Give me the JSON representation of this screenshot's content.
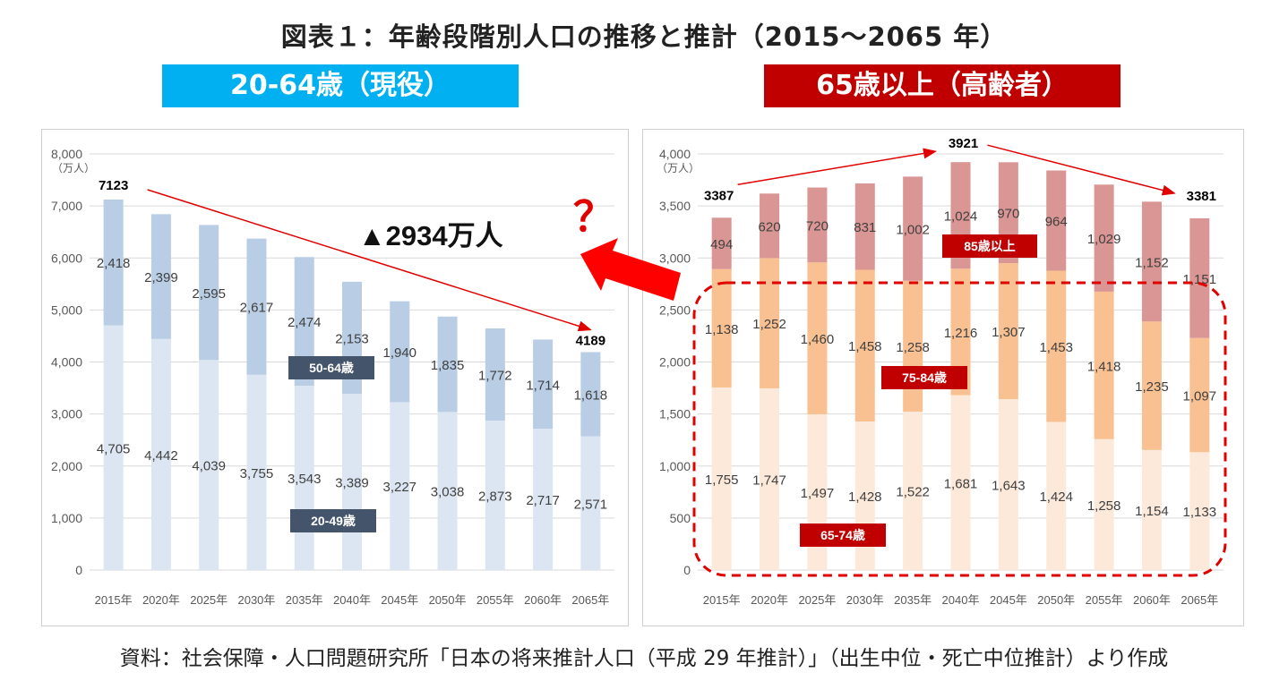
{
  "page": {
    "title": "図表１：年齢段階別人口の推移と推計（2015～2065 年）",
    "source": "資料：社会保障・人口問題研究所「日本の将来推計人口（平成 29 年推計）」（出生中位・死亡中位推計）より作成"
  },
  "colors": {
    "left_banner": "#00b0f0",
    "right_banner": "#c00000",
    "age_20_49": "#dce6f2",
    "age_50_64": "#b9cde5",
    "age_65_74": "#fde9d9",
    "age_75_84": "#f9c191",
    "age_85_plus": "#da9694",
    "label_box_left": "#44546a",
    "label_box_right": "#c00000",
    "trend_arrow": "#e00000"
  },
  "annotations": {
    "left_change": "▲2934万人",
    "question_mark": "？",
    "left_start": "7123",
    "left_end": "4189",
    "right_start": "3387",
    "right_peak": "3921",
    "right_end": "3381"
  },
  "chart_data": [
    {
      "type": "bar",
      "stacked": true,
      "title": "20-64歳（現役）",
      "unit": "（万人）",
      "ylim": [
        0,
        8000
      ],
      "yticks": [
        "0",
        "1,000",
        "2,000",
        "3,000",
        "4,000",
        "5,000",
        "6,000",
        "7,000",
        "8,000"
      ],
      "grid": true,
      "categories": [
        "2015年",
        "2020年",
        "2025年",
        "2030年",
        "2035年",
        "2040年",
        "2045年",
        "2050年",
        "2055年",
        "2060年",
        "2065年"
      ],
      "series": [
        {
          "name": "20-49歳",
          "values": [
            4705,
            4442,
            4039,
            3755,
            3543,
            3389,
            3227,
            3038,
            2873,
            2717,
            2571
          ],
          "labels": [
            "4,705",
            "4,442",
            "4,039",
            "3,755",
            "3,543",
            "3,389",
            "3,227",
            "3,038",
            "2,873",
            "2,717",
            "2,571"
          ]
        },
        {
          "name": "50-64歳",
          "values": [
            2418,
            2399,
            2595,
            2617,
            2474,
            2153,
            1940,
            1835,
            1772,
            1714,
            1618
          ],
          "labels": [
            "2,418",
            "2,399",
            "2,595",
            "2,617",
            "2,474",
            "2,153",
            "1,940",
            "1,835",
            "1,772",
            "1,714",
            "1,618"
          ]
        }
      ]
    },
    {
      "type": "bar",
      "stacked": true,
      "title": "65歳以上（高齢者）",
      "unit": "（万人）",
      "ylim": [
        0,
        4000
      ],
      "yticks": [
        "0",
        "500",
        "1,000",
        "1,500",
        "2,000",
        "2,500",
        "3,000",
        "3,500",
        "4,000"
      ],
      "grid": true,
      "categories": [
        "2015年",
        "2020年",
        "2025年",
        "2030年",
        "2035年",
        "2040年",
        "2045年",
        "2050年",
        "2055年",
        "2060年",
        "2065年"
      ],
      "series": [
        {
          "name": "65-74歳",
          "values": [
            1755,
            1747,
            1497,
            1428,
            1522,
            1681,
            1643,
            1424,
            1258,
            1154,
            1133
          ],
          "labels": [
            "1,755",
            "1,747",
            "1,497",
            "1,428",
            "1,522",
            "1,681",
            "1,643",
            "1,424",
            "1,258",
            "1,154",
            "1,133"
          ]
        },
        {
          "name": "75-84歳",
          "values": [
            1138,
            1252,
            1460,
            1458,
            1258,
            1216,
            1307,
            1453,
            1418,
            1235,
            1097
          ],
          "labels": [
            "1,138",
            "1,252",
            "1,460",
            "1,458",
            "1,258",
            "1,216",
            "1,307",
            "1,453",
            "1,418",
            "1,235",
            "1,097"
          ]
        },
        {
          "name": "85歳以上",
          "values": [
            494,
            620,
            720,
            831,
            1002,
            1024,
            970,
            964,
            1029,
            1152,
            1151
          ],
          "labels": [
            "494",
            "620",
            "720",
            "831",
            "1,002",
            "1,024",
            "970",
            "964",
            "1,029",
            "1,152",
            "1,151"
          ]
        }
      ]
    }
  ]
}
